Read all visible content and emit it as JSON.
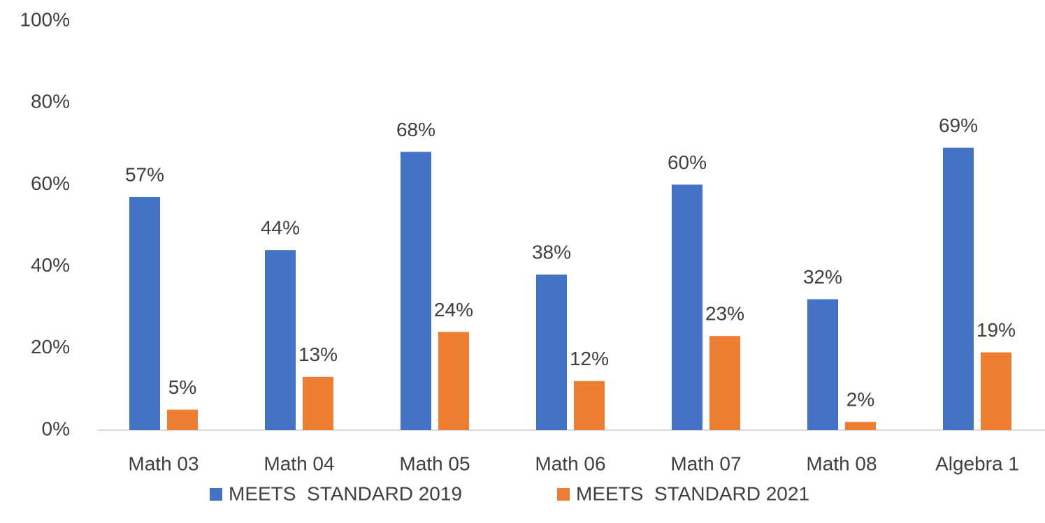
{
  "chart_data": {
    "type": "bar",
    "categories": [
      "Math 03",
      "Math 04",
      "Math 05",
      "Math 06",
      "Math 07",
      "Math 08",
      "Algebra 1"
    ],
    "series": [
      {
        "name": "MEETS  STANDARD 2019",
        "color": "#4472c4",
        "values": [
          57,
          44,
          68,
          38,
          60,
          32,
          69
        ],
        "value_labels": [
          "57%",
          "44%",
          "68%",
          "38%",
          "60%",
          "32%",
          "69%"
        ]
      },
      {
        "name": "MEETS  STANDARD 2021",
        "color": "#ed7d31",
        "values": [
          5,
          13,
          24,
          12,
          23,
          2,
          19
        ],
        "value_labels": [
          "5%",
          "13%",
          "24%",
          "12%",
          "23%",
          "2%",
          "19%"
        ]
      }
    ],
    "ylim": [
      0,
      100
    ],
    "yticks": [
      {
        "value": 0,
        "label": "0%"
      },
      {
        "value": 20,
        "label": "20%"
      },
      {
        "value": 40,
        "label": "40%"
      },
      {
        "value": 60,
        "label": "60%"
      },
      {
        "value": 80,
        "label": "80%"
      },
      {
        "value": 100,
        "label": "100%"
      }
    ],
    "grid": false,
    "legend": "bottom"
  }
}
